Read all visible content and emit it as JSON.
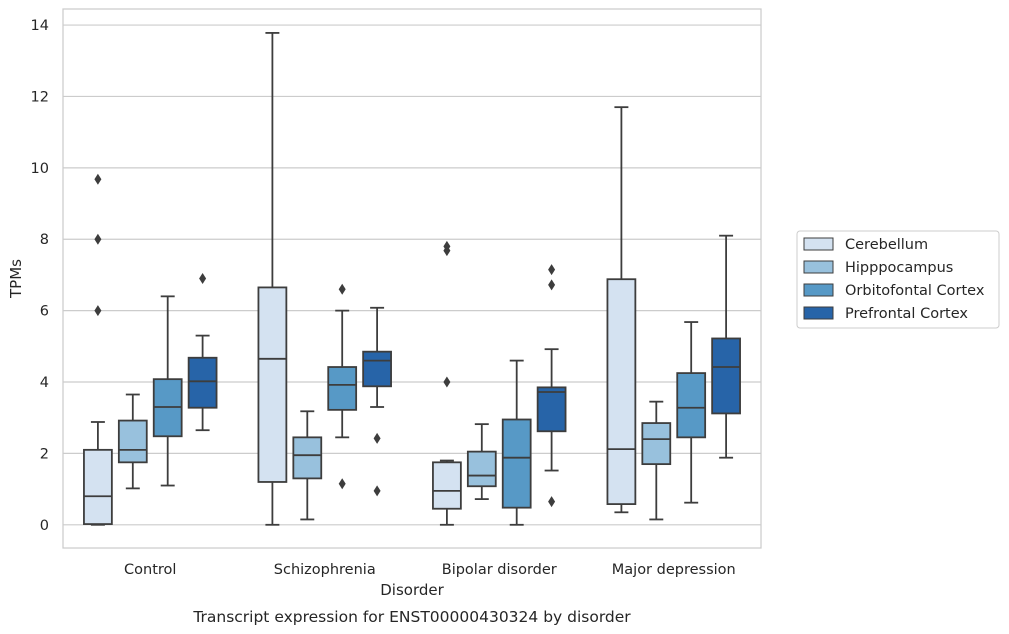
{
  "chart_data": {
    "type": "box",
    "title": "",
    "caption": "Transcript expression for ENST00000430324 by disorder",
    "xlabel": "Disorder",
    "ylabel": "TPMs",
    "ylim": [
      -0.65,
      14.45
    ],
    "yticks": [
      0,
      2,
      4,
      6,
      8,
      10,
      12,
      14
    ],
    "grid": true,
    "legend_position": "right",
    "categories": [
      "Control",
      "Schizophrenia",
      "Bipolar disorder",
      "Major depression"
    ],
    "series": [
      {
        "name": "Cerebellum",
        "color": "#d4e2f1",
        "boxes": [
          {
            "whislo": 0.0,
            "q1": 0.02,
            "med": 0.8,
            "q3": 2.1,
            "whishi": 2.88,
            "fliers": [
              6.0,
              8.0,
              9.68
            ]
          },
          {
            "whislo": 0.0,
            "q1": 1.2,
            "med": 4.65,
            "q3": 6.65,
            "whishi": 13.78,
            "fliers": []
          },
          {
            "whislo": 0.0,
            "q1": 0.45,
            "med": 0.95,
            "q3": 1.75,
            "whishi": 1.8,
            "fliers": [
              4.0,
              7.68,
              7.8
            ]
          },
          {
            "whislo": 0.35,
            "q1": 0.58,
            "med": 2.12,
            "q3": 6.88,
            "whishi": 11.7,
            "fliers": []
          }
        ]
      },
      {
        "name": "Hipppocampus",
        "color": "#98c1dd",
        "boxes": [
          {
            "whislo": 1.02,
            "q1": 1.75,
            "med": 2.1,
            "q3": 2.92,
            "whishi": 3.65,
            "fliers": []
          },
          {
            "whislo": 0.15,
            "q1": 1.3,
            "med": 1.95,
            "q3": 2.45,
            "whishi": 3.18,
            "fliers": []
          },
          {
            "whislo": 0.72,
            "q1": 1.08,
            "med": 1.38,
            "q3": 2.05,
            "whishi": 2.82,
            "fliers": []
          },
          {
            "whislo": 0.15,
            "q1": 1.7,
            "med": 2.4,
            "q3": 2.85,
            "whishi": 3.45,
            "fliers": []
          }
        ]
      },
      {
        "name": "Orbitofontal Cortex",
        "color": "#5799c6",
        "boxes": [
          {
            "whislo": 1.1,
            "q1": 2.48,
            "med": 3.3,
            "q3": 4.08,
            "whishi": 6.4,
            "fliers": []
          },
          {
            "whislo": 2.45,
            "q1": 3.22,
            "med": 3.92,
            "q3": 4.42,
            "whishi": 6.0,
            "fliers": [
              1.15,
              6.6
            ]
          },
          {
            "whislo": 0.0,
            "q1": 0.48,
            "med": 1.88,
            "q3": 2.95,
            "whishi": 4.6,
            "fliers": []
          },
          {
            "whislo": 0.62,
            "q1": 2.45,
            "med": 3.28,
            "q3": 4.25,
            "whishi": 5.68,
            "fliers": []
          }
        ]
      },
      {
        "name": "Prefrontal Cortex",
        "color": "#2764a8",
        "boxes": [
          {
            "whislo": 2.65,
            "q1": 3.28,
            "med": 4.02,
            "q3": 4.68,
            "whishi": 5.3,
            "fliers": [
              6.9
            ]
          },
          {
            "whislo": 3.3,
            "q1": 3.88,
            "med": 4.6,
            "q3": 4.85,
            "whishi": 6.08,
            "fliers": [
              0.95,
              2.42
            ]
          },
          {
            "whislo": 1.52,
            "q1": 2.62,
            "med": 3.72,
            "q3": 3.85,
            "whishi": 4.92,
            "fliers": [
              0.65,
              6.72,
              7.15
            ]
          },
          {
            "whislo": 1.88,
            "q1": 3.12,
            "med": 4.42,
            "q3": 5.22,
            "whishi": 8.1,
            "fliers": []
          }
        ]
      }
    ]
  }
}
